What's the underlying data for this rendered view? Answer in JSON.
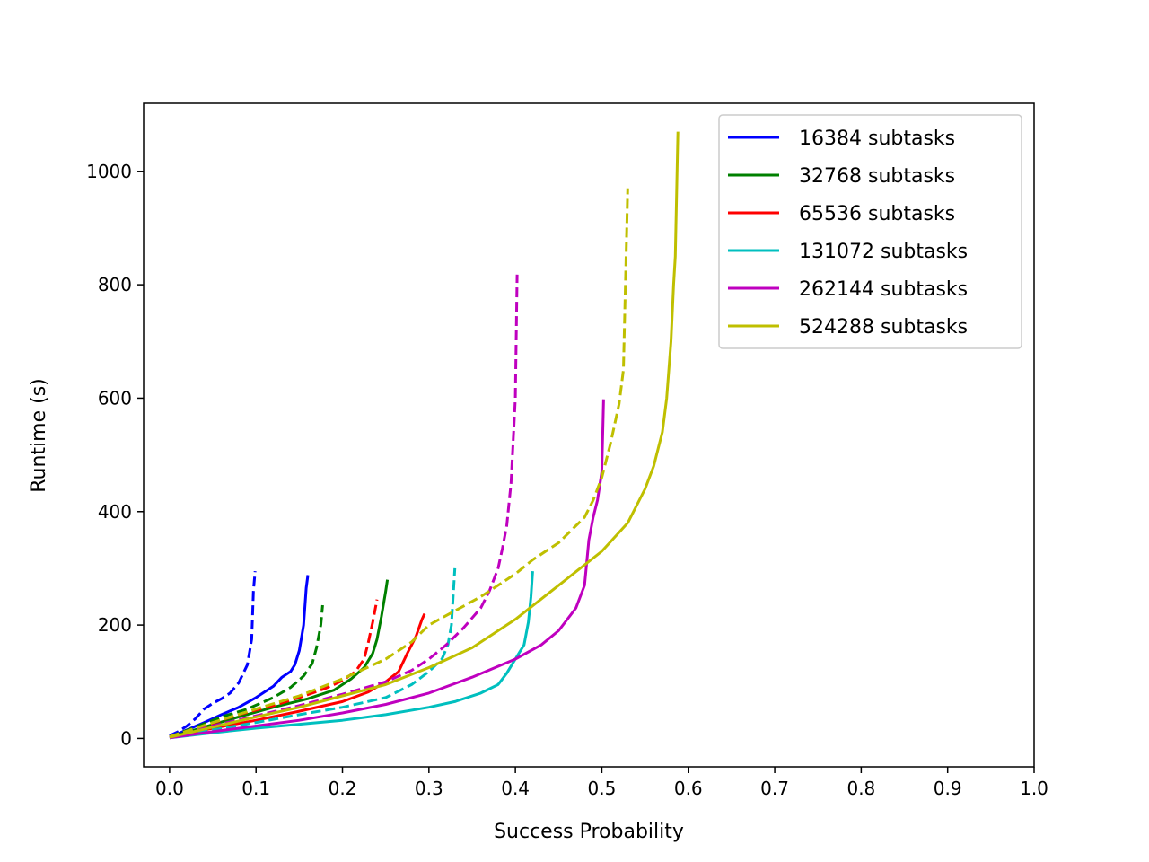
{
  "chart_data": {
    "type": "line",
    "xlabel": "Success Probability",
    "ylabel": "Runtime (s)",
    "xlim": [
      -0.03,
      1.0
    ],
    "ylim": [
      -50,
      1120
    ],
    "xticks": [
      0.0,
      0.1,
      0.2,
      0.3,
      0.4,
      0.5,
      0.6,
      0.7,
      0.8,
      0.9,
      1.0
    ],
    "xtick_labels": [
      "0.0",
      "0.1",
      "0.2",
      "0.3",
      "0.4",
      "0.5",
      "0.6",
      "0.7",
      "0.8",
      "0.9",
      "1.0"
    ],
    "yticks": [
      0,
      200,
      400,
      600,
      800,
      1000
    ],
    "ytick_labels": [
      "0",
      "200",
      "400",
      "600",
      "800",
      "1000"
    ],
    "grid": false,
    "legend_position": "top-right",
    "legend": [
      {
        "label": "16384 subtasks",
        "color": "#0000ff"
      },
      {
        "label": "32768 subtasks",
        "color": "#008000"
      },
      {
        "label": "65536 subtasks",
        "color": "#ff0000"
      },
      {
        "label": "131072 subtasks",
        "color": "#00bfbf"
      },
      {
        "label": "262144 subtasks",
        "color": "#bf00bf"
      },
      {
        "label": "524288 subtasks",
        "color": "#bfbf00"
      }
    ],
    "series": [
      {
        "color": "#0000ff",
        "dash": true,
        "points": [
          [
            0.0,
            5
          ],
          [
            0.01,
            12
          ],
          [
            0.02,
            22
          ],
          [
            0.03,
            35
          ],
          [
            0.04,
            52
          ],
          [
            0.05,
            62
          ],
          [
            0.06,
            70
          ],
          [
            0.07,
            80
          ],
          [
            0.08,
            98
          ],
          [
            0.09,
            130
          ],
          [
            0.095,
            175
          ],
          [
            0.097,
            260
          ],
          [
            0.099,
            295
          ]
        ]
      },
      {
        "color": "#0000ff",
        "dash": false,
        "points": [
          [
            0.0,
            2
          ],
          [
            0.02,
            15
          ],
          [
            0.04,
            28
          ],
          [
            0.06,
            42
          ],
          [
            0.08,
            55
          ],
          [
            0.1,
            72
          ],
          [
            0.12,
            92
          ],
          [
            0.13,
            108
          ],
          [
            0.14,
            118
          ],
          [
            0.145,
            130
          ],
          [
            0.15,
            155
          ],
          [
            0.155,
            200
          ],
          [
            0.158,
            265
          ],
          [
            0.16,
            288
          ]
        ]
      },
      {
        "color": "#008000",
        "dash": true,
        "points": [
          [
            0.0,
            3
          ],
          [
            0.03,
            20
          ],
          [
            0.06,
            38
          ],
          [
            0.09,
            52
          ],
          [
            0.12,
            72
          ],
          [
            0.14,
            90
          ],
          [
            0.155,
            110
          ],
          [
            0.165,
            132
          ],
          [
            0.17,
            160
          ],
          [
            0.175,
            200
          ],
          [
            0.177,
            235
          ]
        ]
      },
      {
        "color": "#008000",
        "dash": false,
        "points": [
          [
            0.0,
            2
          ],
          [
            0.04,
            20
          ],
          [
            0.08,
            38
          ],
          [
            0.12,
            55
          ],
          [
            0.16,
            70
          ],
          [
            0.19,
            85
          ],
          [
            0.21,
            105
          ],
          [
            0.225,
            125
          ],
          [
            0.235,
            150
          ],
          [
            0.24,
            175
          ],
          [
            0.245,
            215
          ],
          [
            0.25,
            260
          ],
          [
            0.252,
            280
          ]
        ]
      },
      {
        "color": "#ff0000",
        "dash": true,
        "points": [
          [
            0.0,
            3
          ],
          [
            0.04,
            22
          ],
          [
            0.08,
            42
          ],
          [
            0.12,
            58
          ],
          [
            0.15,
            72
          ],
          [
            0.18,
            88
          ],
          [
            0.2,
            102
          ],
          [
            0.215,
            118
          ],
          [
            0.225,
            140
          ],
          [
            0.23,
            170
          ],
          [
            0.235,
            205
          ],
          [
            0.24,
            245
          ]
        ]
      },
      {
        "color": "#ff0000",
        "dash": false,
        "points": [
          [
            0.0,
            2
          ],
          [
            0.05,
            18
          ],
          [
            0.1,
            32
          ],
          [
            0.15,
            48
          ],
          [
            0.2,
            65
          ],
          [
            0.23,
            82
          ],
          [
            0.25,
            100
          ],
          [
            0.265,
            118
          ],
          [
            0.275,
            150
          ],
          [
            0.285,
            180
          ],
          [
            0.292,
            210
          ],
          [
            0.295,
            220
          ]
        ]
      },
      {
        "color": "#00bfbf",
        "dash": true,
        "points": [
          [
            0.0,
            2
          ],
          [
            0.05,
            15
          ],
          [
            0.1,
            28
          ],
          [
            0.15,
            42
          ],
          [
            0.2,
            55
          ],
          [
            0.25,
            72
          ],
          [
            0.28,
            95
          ],
          [
            0.3,
            118
          ],
          [
            0.315,
            140
          ],
          [
            0.322,
            165
          ],
          [
            0.326,
            200
          ],
          [
            0.33,
            300
          ]
        ]
      },
      {
        "color": "#00bfbf",
        "dash": false,
        "points": [
          [
            0.0,
            1
          ],
          [
            0.05,
            10
          ],
          [
            0.1,
            18
          ],
          [
            0.15,
            25
          ],
          [
            0.2,
            32
          ],
          [
            0.25,
            42
          ],
          [
            0.3,
            55
          ],
          [
            0.33,
            65
          ],
          [
            0.36,
            80
          ],
          [
            0.38,
            95
          ],
          [
            0.39,
            115
          ],
          [
            0.4,
            140
          ],
          [
            0.41,
            165
          ],
          [
            0.415,
            205
          ],
          [
            0.418,
            250
          ],
          [
            0.42,
            295
          ]
        ]
      },
      {
        "color": "#bf00bf",
        "dash": true,
        "points": [
          [
            0.0,
            2
          ],
          [
            0.05,
            22
          ],
          [
            0.1,
            40
          ],
          [
            0.15,
            58
          ],
          [
            0.2,
            78
          ],
          [
            0.25,
            100
          ],
          [
            0.28,
            120
          ],
          [
            0.3,
            140
          ],
          [
            0.32,
            165
          ],
          [
            0.34,
            195
          ],
          [
            0.36,
            230
          ],
          [
            0.37,
            260
          ],
          [
            0.38,
            300
          ],
          [
            0.385,
            335
          ],
          [
            0.39,
            375
          ],
          [
            0.395,
            450
          ],
          [
            0.4,
            600
          ],
          [
            0.402,
            818
          ]
        ]
      },
      {
        "color": "#bf00bf",
        "dash": false,
        "points": [
          [
            0.0,
            1
          ],
          [
            0.05,
            12
          ],
          [
            0.1,
            22
          ],
          [
            0.15,
            32
          ],
          [
            0.2,
            45
          ],
          [
            0.25,
            60
          ],
          [
            0.3,
            80
          ],
          [
            0.35,
            108
          ],
          [
            0.4,
            140
          ],
          [
            0.43,
            165
          ],
          [
            0.45,
            190
          ],
          [
            0.47,
            230
          ],
          [
            0.48,
            270
          ],
          [
            0.485,
            350
          ],
          [
            0.49,
            390
          ],
          [
            0.495,
            420
          ],
          [
            0.5,
            470
          ],
          [
            0.502,
            598
          ]
        ]
      },
      {
        "color": "#bfbf00",
        "dash": true,
        "points": [
          [
            0.0,
            3
          ],
          [
            0.05,
            28
          ],
          [
            0.1,
            52
          ],
          [
            0.15,
            75
          ],
          [
            0.2,
            105
          ],
          [
            0.25,
            140
          ],
          [
            0.28,
            170
          ],
          [
            0.3,
            200
          ],
          [
            0.33,
            225
          ],
          [
            0.36,
            250
          ],
          [
            0.4,
            290
          ],
          [
            0.42,
            315
          ],
          [
            0.45,
            345
          ],
          [
            0.48,
            390
          ],
          [
            0.49,
            420
          ],
          [
            0.5,
            460
          ],
          [
            0.51,
            520
          ],
          [
            0.52,
            590
          ],
          [
            0.525,
            650
          ],
          [
            0.53,
            970
          ]
        ]
      },
      {
        "color": "#bfbf00",
        "dash": false,
        "points": [
          [
            0.0,
            2
          ],
          [
            0.05,
            20
          ],
          [
            0.1,
            38
          ],
          [
            0.15,
            55
          ],
          [
            0.2,
            75
          ],
          [
            0.25,
            95
          ],
          [
            0.3,
            125
          ],
          [
            0.35,
            160
          ],
          [
            0.4,
            210
          ],
          [
            0.45,
            270
          ],
          [
            0.5,
            330
          ],
          [
            0.53,
            380
          ],
          [
            0.55,
            440
          ],
          [
            0.56,
            480
          ],
          [
            0.57,
            540
          ],
          [
            0.575,
            600
          ],
          [
            0.58,
            700
          ],
          [
            0.583,
            800
          ],
          [
            0.585,
            850
          ],
          [
            0.588,
            1070
          ]
        ]
      }
    ]
  }
}
